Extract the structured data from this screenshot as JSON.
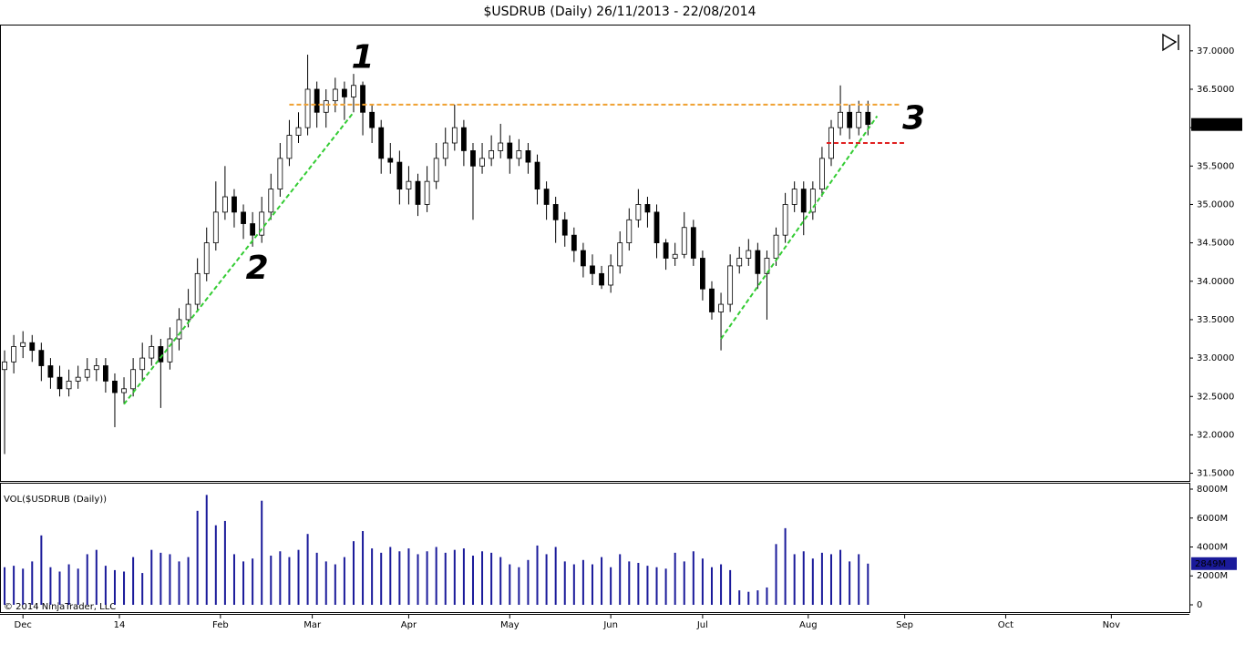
{
  "chart_data": {
    "type": "candlestick",
    "title": "$USDRUB (Daily)  26/11/2013 - 22/08/2014",
    "volume_label": "VOL($USDRUB (Daily))",
    "copyright": "© 2014 NinjaTrader, LLC",
    "xlim": [
      -1,
      258
    ],
    "xticks": [
      {
        "value": 4,
        "label": "Dec"
      },
      {
        "value": 25,
        "label": "14"
      },
      {
        "value": 47,
        "label": "Feb"
      },
      {
        "value": 67,
        "label": "Mar"
      },
      {
        "value": 88,
        "label": "Apr"
      },
      {
        "value": 110,
        "label": "May"
      },
      {
        "value": 132,
        "label": "Jun"
      },
      {
        "value": 152,
        "label": "Jul"
      },
      {
        "value": 175,
        "label": "Aug"
      },
      {
        "value": 196,
        "label": "Sep"
      },
      {
        "value": 218,
        "label": "Oct"
      },
      {
        "value": 241,
        "label": "Nov"
      }
    ],
    "ylim": [
      31.4,
      37.33
    ],
    "yticks": [
      {
        "value": 31.5,
        "label": "31.5000"
      },
      {
        "value": 32,
        "label": "32.0000"
      },
      {
        "value": 32.5,
        "label": "32.5000"
      },
      {
        "value": 33,
        "label": "33.0000"
      },
      {
        "value": 33.5,
        "label": "33.5000"
      },
      {
        "value": 34,
        "label": "34.0000"
      },
      {
        "value": 34.5,
        "label": "34.5000"
      },
      {
        "value": 35,
        "label": "35.0000"
      },
      {
        "value": 35.5,
        "label": "35.5000"
      },
      {
        "value": 36,
        "label": "36.0000"
      },
      {
        "value": 36.5,
        "label": "36.5000"
      },
      {
        "value": 37,
        "label": "37.0000"
      }
    ],
    "y2lim": [
      -504,
      8378
    ],
    "y2ticks": [
      0,
      {
        "value": 2000,
        "label": "2000M"
      },
      {
        "value": 4000,
        "label": "4000M"
      },
      {
        "value": 6000,
        "label": "6000M"
      },
      {
        "value": 8000,
        "label": "8000M"
      }
    ],
    "up_color": "#ffffff",
    "down_color": "#000000",
    "volume_color": "#1a1a9a",
    "last_price": {
      "value": 36.041,
      "label": "36.0410"
    },
    "last_volume": {
      "value": 2849,
      "label": "2849M"
    },
    "x": [
      0,
      2,
      4,
      6,
      8,
      10,
      12,
      14,
      16,
      18,
      20,
      22,
      24,
      26,
      28,
      30,
      32,
      34,
      36,
      38,
      40,
      42,
      44,
      46,
      48,
      50,
      52,
      54,
      56,
      58,
      60,
      62,
      64,
      66,
      68,
      70,
      72,
      74,
      76,
      78,
      80,
      82,
      84,
      86,
      88,
      90,
      92,
      94,
      96,
      98,
      100,
      102,
      104,
      106,
      108,
      110,
      112,
      114,
      116,
      118,
      120,
      122,
      124,
      126,
      128,
      130,
      132,
      134,
      136,
      138,
      140,
      142,
      144,
      146,
      148,
      150,
      152,
      154,
      156,
      158,
      160,
      162,
      164,
      166,
      168,
      170,
      172,
      174,
      176,
      178,
      180,
      182,
      184,
      186,
      188
    ],
    "ohlc": [
      [
        32.85,
        33.1,
        31.75,
        32.95
      ],
      [
        32.95,
        33.3,
        32.8,
        33.15
      ],
      [
        33.15,
        33.35,
        33.0,
        33.2
      ],
      [
        33.2,
        33.3,
        32.95,
        33.1
      ],
      [
        33.1,
        33.2,
        32.7,
        32.9
      ],
      [
        32.9,
        33.0,
        32.6,
        32.75
      ],
      [
        32.75,
        32.9,
        32.5,
        32.6
      ],
      [
        32.6,
        32.85,
        32.5,
        32.7
      ],
      [
        32.7,
        32.9,
        32.6,
        32.75
      ],
      [
        32.75,
        33.0,
        32.7,
        32.85
      ],
      [
        32.85,
        33.0,
        32.7,
        32.9
      ],
      [
        32.9,
        33.0,
        32.55,
        32.7
      ],
      [
        32.7,
        32.8,
        32.1,
        32.55
      ],
      [
        32.55,
        32.75,
        32.4,
        32.6
      ],
      [
        32.6,
        33.0,
        32.5,
        32.85
      ],
      [
        32.85,
        33.2,
        32.7,
        33.0
      ],
      [
        33.0,
        33.3,
        32.9,
        33.15
      ],
      [
        33.15,
        33.25,
        32.35,
        32.95
      ],
      [
        32.95,
        33.4,
        32.85,
        33.25
      ],
      [
        33.25,
        33.65,
        33.1,
        33.5
      ],
      [
        33.5,
        33.9,
        33.4,
        33.7
      ],
      [
        33.7,
        34.3,
        33.6,
        34.1
      ],
      [
        34.1,
        34.7,
        34.0,
        34.5
      ],
      [
        34.5,
        35.3,
        34.4,
        34.9
      ],
      [
        34.9,
        35.5,
        34.8,
        35.1
      ],
      [
        35.1,
        35.2,
        34.7,
        34.9
      ],
      [
        34.9,
        35.0,
        34.55,
        34.75
      ],
      [
        34.75,
        34.9,
        34.45,
        34.6
      ],
      [
        34.6,
        35.1,
        34.5,
        34.9
      ],
      [
        34.9,
        35.4,
        34.8,
        35.2
      ],
      [
        35.2,
        35.8,
        35.1,
        35.6
      ],
      [
        35.6,
        36.1,
        35.5,
        35.9
      ],
      [
        35.9,
        36.2,
        35.8,
        36.0
      ],
      [
        36.0,
        36.95,
        35.9,
        36.5
      ],
      [
        36.5,
        36.6,
        36.0,
        36.2
      ],
      [
        36.2,
        36.5,
        36.0,
        36.35
      ],
      [
        36.35,
        36.65,
        36.2,
        36.5
      ],
      [
        36.5,
        36.6,
        36.1,
        36.4
      ],
      [
        36.4,
        36.7,
        36.2,
        36.55
      ],
      [
        36.55,
        36.6,
        35.9,
        36.2
      ],
      [
        36.2,
        36.3,
        35.8,
        36.0
      ],
      [
        36.0,
        36.1,
        35.4,
        35.6
      ],
      [
        35.6,
        35.8,
        35.4,
        35.55
      ],
      [
        35.55,
        35.7,
        35.0,
        35.2
      ],
      [
        35.2,
        35.5,
        35.0,
        35.3
      ],
      [
        35.3,
        35.4,
        34.85,
        35.0
      ],
      [
        35.0,
        35.5,
        34.9,
        35.3
      ],
      [
        35.3,
        35.8,
        35.2,
        35.6
      ],
      [
        35.6,
        36.0,
        35.5,
        35.8
      ],
      [
        35.8,
        36.3,
        35.7,
        36.0
      ],
      [
        36.0,
        36.1,
        35.5,
        35.7
      ],
      [
        35.7,
        35.8,
        34.8,
        35.5
      ],
      [
        35.5,
        35.8,
        35.4,
        35.6
      ],
      [
        35.6,
        35.9,
        35.5,
        35.7
      ],
      [
        35.7,
        36.05,
        35.6,
        35.8
      ],
      [
        35.8,
        35.9,
        35.4,
        35.6
      ],
      [
        35.6,
        35.85,
        35.5,
        35.7
      ],
      [
        35.7,
        35.8,
        35.4,
        35.55
      ],
      [
        35.55,
        35.65,
        35.0,
        35.2
      ],
      [
        35.2,
        35.3,
        34.8,
        35.0
      ],
      [
        35.0,
        35.1,
        34.5,
        34.8
      ],
      [
        34.8,
        34.9,
        34.45,
        34.6
      ],
      [
        34.6,
        34.7,
        34.25,
        34.4
      ],
      [
        34.4,
        34.5,
        34.05,
        34.2
      ],
      [
        34.2,
        34.35,
        33.95,
        34.1
      ],
      [
        34.1,
        34.2,
        33.9,
        33.95
      ],
      [
        33.95,
        34.35,
        33.85,
        34.2
      ],
      [
        34.2,
        34.65,
        34.1,
        34.5
      ],
      [
        34.5,
        34.95,
        34.4,
        34.8
      ],
      [
        34.8,
        35.2,
        34.7,
        35.0
      ],
      [
        35.0,
        35.1,
        34.7,
        34.9
      ],
      [
        34.9,
        35.0,
        34.3,
        34.5
      ],
      [
        34.5,
        34.55,
        34.15,
        34.3
      ],
      [
        34.3,
        34.5,
        34.2,
        34.35
      ],
      [
        34.35,
        34.9,
        34.3,
        34.7
      ],
      [
        34.7,
        34.8,
        34.2,
        34.3
      ],
      [
        34.3,
        34.4,
        33.75,
        33.9
      ],
      [
        33.9,
        34.0,
        33.5,
        33.6
      ],
      [
        33.6,
        33.85,
        33.1,
        33.7
      ],
      [
        33.7,
        34.35,
        33.6,
        34.2
      ],
      [
        34.2,
        34.45,
        34.1,
        34.3
      ],
      [
        34.3,
        34.55,
        34.2,
        34.4
      ],
      [
        34.4,
        34.5,
        33.9,
        34.1
      ],
      [
        34.1,
        34.4,
        33.5,
        34.3
      ],
      [
        34.3,
        34.7,
        34.2,
        34.6
      ],
      [
        34.6,
        35.15,
        34.5,
        35.0
      ],
      [
        35.0,
        35.3,
        34.9,
        35.2
      ],
      [
        35.2,
        35.3,
        34.6,
        34.9
      ],
      [
        34.9,
        35.3,
        34.8,
        35.2
      ],
      [
        35.2,
        35.75,
        35.1,
        35.6
      ],
      [
        35.6,
        36.1,
        35.5,
        36.0
      ],
      [
        36.0,
        36.55,
        35.9,
        36.2
      ],
      [
        36.2,
        36.3,
        35.85,
        36.0
      ],
      [
        36.0,
        36.35,
        35.9,
        36.2
      ],
      [
        36.2,
        36.35,
        35.9,
        36.041
      ]
    ],
    "volume": [
      2600,
      2700,
      2500,
      3000,
      4800,
      2600,
      2300,
      2800,
      2500,
      3500,
      3800,
      2700,
      2400,
      2300,
      3300,
      2200,
      3800,
      3600,
      3500,
      3000,
      3300,
      6500,
      7600,
      5500,
      5800,
      3500,
      3000,
      3200,
      7200,
      3400,
      3700,
      3300,
      3800,
      4900,
      3600,
      3000,
      2800,
      3300,
      4400,
      5100,
      3900,
      3600,
      4000,
      3700,
      3900,
      3500,
      3700,
      4000,
      3600,
      3800,
      3900,
      3400,
      3700,
      3600,
      3300,
      2800,
      2600,
      3100,
      4100,
      3500,
      4000,
      3000,
      2800,
      3100,
      2800,
      3300,
      2600,
      3500,
      3000,
      2900,
      2700,
      2600,
      2500,
      3600,
      3000,
      3700,
      3200,
      2600,
      2800,
      2400,
      1000,
      900,
      1000,
      1200,
      4200,
      5300,
      3500,
      3700,
      3200,
      3600,
      3500,
      3800,
      3000,
      3500,
      2849
    ],
    "lines": [
      {
        "color": "#f0a030",
        "x": [
          62,
          195
        ],
        "y": [
          36.3,
          36.3
        ]
      },
      {
        "color": "#e02020",
        "x": [
          179,
          196
        ],
        "y": [
          35.8,
          35.8
        ]
      },
      {
        "color": "#33cc33",
        "x": [
          26,
          76
        ],
        "y": [
          32.4,
          36.2
        ]
      },
      {
        "color": "#33cc33",
        "x": [
          156,
          190
        ],
        "y": [
          33.25,
          36.15
        ]
      }
    ],
    "annotations": [
      {
        "text": "1",
        "color": "#1a2fc8",
        "x": 78,
        "y": 36.9
      },
      {
        "text": "2",
        "color": "#1a7a1a",
        "x": 55,
        "y": 34.15
      },
      {
        "text": "3",
        "color": "#e01818",
        "x": 198,
        "y": 36.1
      }
    ]
  }
}
